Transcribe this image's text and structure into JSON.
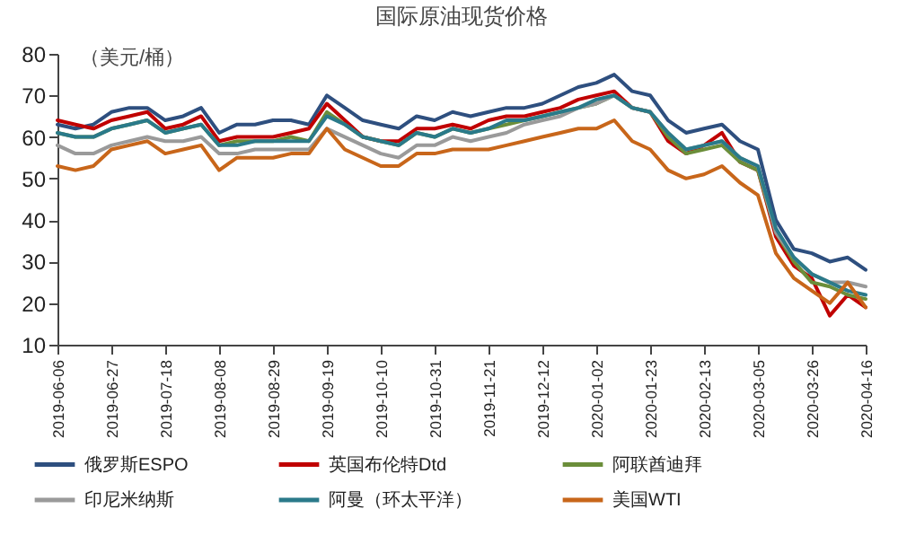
{
  "chart_data": {
    "type": "line",
    "title": "国际原油现货价格",
    "ylabel": "（美元/桶）",
    "x": [
      "2019-06-06",
      "2019-06-13",
      "2019-06-20",
      "2019-06-27",
      "2019-07-04",
      "2019-07-11",
      "2019-07-18",
      "2019-07-25",
      "2019-08-01",
      "2019-08-08",
      "2019-08-15",
      "2019-08-22",
      "2019-08-29",
      "2019-09-05",
      "2019-09-12",
      "2019-09-19",
      "2019-09-26",
      "2019-10-03",
      "2019-10-10",
      "2019-10-17",
      "2019-10-24",
      "2019-10-31",
      "2019-11-07",
      "2019-11-14",
      "2019-11-21",
      "2019-11-28",
      "2019-12-05",
      "2019-12-12",
      "2019-12-19",
      "2019-12-26",
      "2020-01-02",
      "2020-01-09",
      "2020-01-16",
      "2020-01-23",
      "2020-01-30",
      "2020-02-06",
      "2020-02-13",
      "2020-02-20",
      "2020-02-27",
      "2020-03-05",
      "2020-03-12",
      "2020-03-19",
      "2020-03-26",
      "2020-04-02",
      "2020-04-09",
      "2020-04-16"
    ],
    "series": [
      {
        "name": "俄罗斯ESPO",
        "color": "#2e4f7f",
        "values": [
          63,
          62,
          63,
          66,
          67,
          67,
          64,
          65,
          67,
          61,
          63,
          63,
          64,
          64,
          63,
          70,
          67,
          64,
          63,
          62,
          65,
          64,
          66,
          65,
          66,
          67,
          67,
          68,
          70,
          72,
          73,
          75,
          71,
          70,
          64,
          61,
          62,
          63,
          59,
          57,
          40,
          33,
          32,
          30,
          31,
          28
        ]
      },
      {
        "name": "英国布伦特Dtd",
        "color": "#c00000",
        "values": [
          64,
          63,
          62,
          64,
          65,
          66,
          62,
          63,
          65,
          59,
          60,
          60,
          60,
          61,
          62,
          68,
          64,
          60,
          59,
          59,
          62,
          62,
          63,
          62,
          64,
          65,
          65,
          66,
          67,
          69,
          70,
          71,
          67,
          66,
          59,
          56,
          58,
          61,
          54,
          52,
          36,
          29,
          26,
          17,
          22,
          19
        ]
      },
      {
        "name": "阿联酋迪拜",
        "color": "#6b8e3a",
        "values": [
          61,
          60,
          60,
          62,
          63,
          64,
          61,
          62,
          63,
          58,
          59,
          59,
          59,
          60,
          59,
          66,
          63,
          60,
          59,
          58,
          61,
          60,
          62,
          61,
          62,
          63,
          64,
          65,
          66,
          67,
          68,
          70,
          67,
          66,
          60,
          56,
          57,
          58,
          54,
          52,
          37,
          30,
          25,
          24,
          22,
          21
        ]
      },
      {
        "name": "印尼米纳斯",
        "color": "#9a9a9a",
        "values": [
          58,
          56,
          56,
          58,
          59,
          60,
          59,
          59,
          60,
          56,
          56,
          57,
          57,
          57,
          57,
          62,
          60,
          58,
          56,
          55,
          58,
          58,
          60,
          59,
          60,
          61,
          63,
          64,
          65,
          67,
          68,
          70,
          67,
          66,
          61,
          57,
          58,
          59,
          55,
          53,
          37,
          31,
          27,
          25,
          25,
          24
        ]
      },
      {
        "name": "阿曼（环太平洋）",
        "color": "#2a7a8a",
        "values": [
          61,
          60,
          60,
          62,
          63,
          64,
          61,
          62,
          63,
          58,
          58,
          59,
          59,
          59,
          59,
          65,
          63,
          60,
          59,
          58,
          61,
          60,
          62,
          61,
          62,
          64,
          64,
          65,
          66,
          67,
          69,
          70,
          67,
          66,
          61,
          57,
          58,
          59,
          55,
          53,
          38,
          31,
          27,
          25,
          23,
          22
        ]
      },
      {
        "name": "美国WTI",
        "color": "#c8661a",
        "values": [
          53,
          52,
          53,
          57,
          58,
          59,
          56,
          57,
          58,
          52,
          55,
          55,
          55,
          56,
          56,
          62,
          57,
          55,
          53,
          53,
          56,
          56,
          57,
          57,
          57,
          58,
          59,
          60,
          61,
          62,
          62,
          64,
          59,
          57,
          52,
          50,
          51,
          53,
          49,
          46,
          32,
          26,
          23,
          20,
          25,
          19
        ]
      }
    ],
    "xlim": [
      "2019-06-06",
      "2020-04-16"
    ],
    "xticks": [
      "2019-06-06",
      "2019-06-27",
      "2019-07-18",
      "2019-08-08",
      "2019-08-29",
      "2019-09-19",
      "2019-10-10",
      "2019-10-31",
      "2019-11-21",
      "2019-12-12",
      "2020-01-02",
      "2020-01-23",
      "2020-02-13",
      "2020-03-05",
      "2020-03-26",
      "2020-04-16"
    ],
    "ylim": [
      10,
      80
    ],
    "yticks": [
      10,
      20,
      30,
      40,
      50,
      60,
      70,
      80
    ],
    "grid": false,
    "legend": "bottom",
    "line_style": "solid",
    "marker": "none"
  }
}
